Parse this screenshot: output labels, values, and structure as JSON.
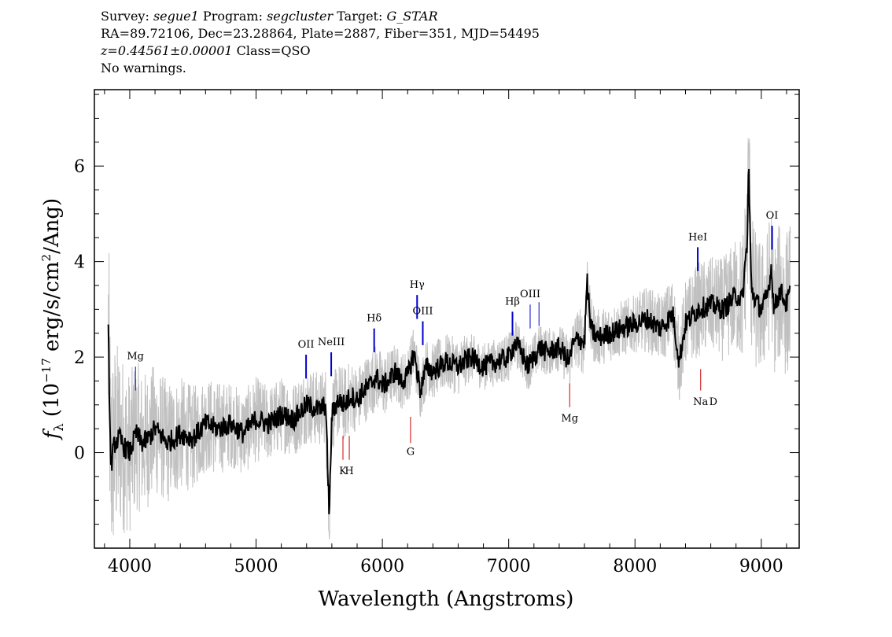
{
  "header": {
    "line1": {
      "survey_label": "Survey:",
      "survey": "segue1",
      "program_label": "Program:",
      "program": "segcluster",
      "target_label": "Target:",
      "target": "G_STAR"
    },
    "line2": "RA=89.72106, Dec=23.28864, Plate=2887, Fiber=351, MJD=54495",
    "line3": {
      "z": "z=0.44561±0.00001",
      "class": "Class=QSO"
    },
    "line4": "No warnings."
  },
  "chart_data": {
    "type": "line",
    "xlabel": "Wavelength (Angstroms)",
    "ylabel_parts": {
      "f": "f",
      "sub": "λ",
      "a": " (10",
      "exp1": "−17",
      "b": " erg/s/cm",
      "exp2": "2",
      "c": "/Ang)"
    },
    "xlim": [
      3720,
      9300
    ],
    "ylim": [
      -2.0,
      7.6
    ],
    "x_ticks": [
      4000,
      5000,
      6000,
      7000,
      8000,
      9000
    ],
    "y_ticks": [
      0,
      2,
      4,
      6
    ],
    "series": [
      {
        "role": "flux-smoothed",
        "color": "#000000",
        "x": [
          3830,
          3850,
          3880,
          3920,
          3960,
          4000,
          4050,
          4100,
          4150,
          4200,
          4300,
          4400,
          4500,
          4600,
          4700,
          4800,
          4900,
          5000,
          5100,
          5200,
          5300,
          5400,
          5500,
          5550,
          5580,
          5600,
          5650,
          5700,
          5750,
          5800,
          5850,
          5900,
          5950,
          6000,
          6050,
          6100,
          6150,
          6200,
          6250,
          6300,
          6350,
          6400,
          6500,
          6600,
          6700,
          6800,
          6900,
          7000,
          7050,
          7100,
          7150,
          7200,
          7250,
          7300,
          7400,
          7480,
          7500,
          7550,
          7600,
          7620,
          7650,
          7700,
          7800,
          7900,
          8000,
          8100,
          8200,
          8300,
          8350,
          8400,
          8500,
          8600,
          8700,
          8800,
          8850,
          8890,
          8900,
          8920,
          8950,
          9000,
          9050,
          9080,
          9100,
          9150,
          9200,
          9230
        ],
        "y": [
          2.5,
          -0.3,
          0.2,
          0.3,
          0.1,
          0.0,
          0.4,
          0.2,
          0.3,
          0.5,
          0.2,
          0.4,
          0.3,
          0.6,
          0.5,
          0.6,
          0.4,
          0.7,
          0.6,
          0.8,
          0.7,
          1.0,
          0.9,
          1.0,
          -1.3,
          0.8,
          1.1,
          1.0,
          1.2,
          1.1,
          1.3,
          1.4,
          1.6,
          1.4,
          1.5,
          1.7,
          1.5,
          1.6,
          2.1,
          1.3,
          1.8,
          1.7,
          1.9,
          1.8,
          2.0,
          1.8,
          1.9,
          2.0,
          2.3,
          2.1,
          1.8,
          2.0,
          2.2,
          2.1,
          2.2,
          1.9,
          2.2,
          2.4,
          2.3,
          3.6,
          2.6,
          2.4,
          2.5,
          2.6,
          2.7,
          2.8,
          2.6,
          2.9,
          1.9,
          2.7,
          3.0,
          3.1,
          3.0,
          3.3,
          3.2,
          4.5,
          6.1,
          3.5,
          3.2,
          3.0,
          3.3,
          3.9,
          3.0,
          3.4,
          3.1,
          3.4
        ]
      },
      {
        "role": "flux-noise",
        "color": "#c0c0c0",
        "x": [
          3830,
          3850,
          3880,
          3920,
          3960,
          4000,
          4100,
          4200,
          4300,
          4400,
          4500,
          4600,
          4700,
          4800,
          4900,
          5000,
          5100,
          5200,
          5300,
          5400,
          5500,
          5600,
          5700,
          5800,
          5900,
          6000,
          6100,
          6200,
          6300,
          6400,
          6500,
          6600,
          6700,
          6800,
          6900,
          7000,
          7100,
          7200,
          7300,
          7400,
          7500,
          7600,
          7700,
          7800,
          7900,
          8000,
          8100,
          8200,
          8300,
          8400,
          8500,
          8600,
          8700,
          8800,
          8900,
          9000,
          9100,
          9200,
          9230
        ],
        "spread": [
          2.6,
          2.4,
          2.2,
          2.0,
          1.8,
          1.7,
          1.5,
          1.4,
          1.3,
          1.2,
          1.1,
          1.0,
          1.0,
          0.9,
          0.9,
          0.9,
          0.8,
          0.8,
          0.8,
          0.8,
          0.8,
          0.8,
          0.8,
          0.7,
          0.7,
          0.7,
          0.6,
          0.6,
          0.6,
          0.6,
          0.6,
          0.6,
          0.5,
          0.5,
          0.5,
          0.5,
          0.5,
          0.5,
          0.5,
          0.5,
          0.6,
          0.7,
          0.6,
          0.6,
          0.6,
          0.6,
          0.7,
          0.7,
          0.8,
          0.9,
          1.0,
          1.0,
          1.1,
          1.2,
          1.6,
          1.4,
          1.4,
          1.6,
          1.6
        ]
      }
    ],
    "emission_lines": [
      {
        "label": "Mg",
        "x": 4045,
        "y1": 1.3,
        "y2": 1.8,
        "label_y": 1.95,
        "color": "#0000cc",
        "width": 1
      },
      {
        "label": "OII",
        "x": 5396,
        "y1": 1.55,
        "y2": 2.05,
        "label_y": 2.2,
        "color": "#0000cc",
        "width": 2
      },
      {
        "label": "NeIII",
        "x": 5595,
        "y1": 1.6,
        "y2": 2.1,
        "label_y": 2.25,
        "color": "#0000cc",
        "width": 2
      },
      {
        "label": "Hδ",
        "x": 5935,
        "y1": 2.1,
        "y2": 2.6,
        "label_y": 2.75,
        "color": "#0000cc",
        "width": 2
      },
      {
        "label": "Hγ",
        "x": 6275,
        "y1": 2.8,
        "y2": 3.3,
        "label_y": 3.45,
        "color": "#0000cc",
        "width": 2
      },
      {
        "label": "OIII",
        "x": 6320,
        "y1": 2.25,
        "y2": 2.75,
        "label_y": 2.9,
        "color": "#0000cc",
        "width": 2
      },
      {
        "label": "Hβ",
        "x": 7030,
        "y1": 2.45,
        "y2": 2.95,
        "label_y": 3.1,
        "color": "#0000cc",
        "width": 2
      },
      {
        "label": "OIII",
        "x": 7170,
        "y1": 2.6,
        "y2": 3.1,
        "label_y": 3.25,
        "color": "#0000cc",
        "width": 1
      },
      {
        "label": "",
        "x": 7240,
        "y1": 2.65,
        "y2": 3.15,
        "label_y": 0,
        "color": "#0000cc",
        "width": 1
      },
      {
        "label": "HeI",
        "x": 8497,
        "y1": 3.8,
        "y2": 4.3,
        "label_y": 4.45,
        "color": "#0000cc",
        "width": 2
      },
      {
        "label": "OI",
        "x": 9085,
        "y1": 4.25,
        "y2": 4.75,
        "label_y": 4.9,
        "color": "#0000cc",
        "width": 2
      }
    ],
    "absorption_lines": [
      {
        "label": "K",
        "x": 5688,
        "y1": -0.15,
        "y2": 0.35,
        "label_y": -0.45,
        "color": "#cc0000",
        "width": 1
      },
      {
        "label": "H",
        "x": 5738,
        "y1": -0.15,
        "y2": 0.35,
        "label_y": -0.45,
        "color": "#cc0000",
        "width": 1
      },
      {
        "label": "G",
        "x": 6223,
        "y1": 0.2,
        "y2": 0.75,
        "label_y": -0.05,
        "color": "#cc0000",
        "width": 1
      },
      {
        "label": "Mg",
        "x": 7483,
        "y1": 0.95,
        "y2": 1.45,
        "label_y": 0.65,
        "color": "#cc0000",
        "width": 1
      },
      {
        "label": "Na",
        "x": 8520,
        "y1": 1.3,
        "y2": 1.75,
        "label_y": 1.0,
        "color": "#cc0000",
        "width": 1
      }
    ],
    "extra_labels": [
      {
        "label": "D",
        "x": 8620,
        "label_y": 1.0
      }
    ]
  }
}
